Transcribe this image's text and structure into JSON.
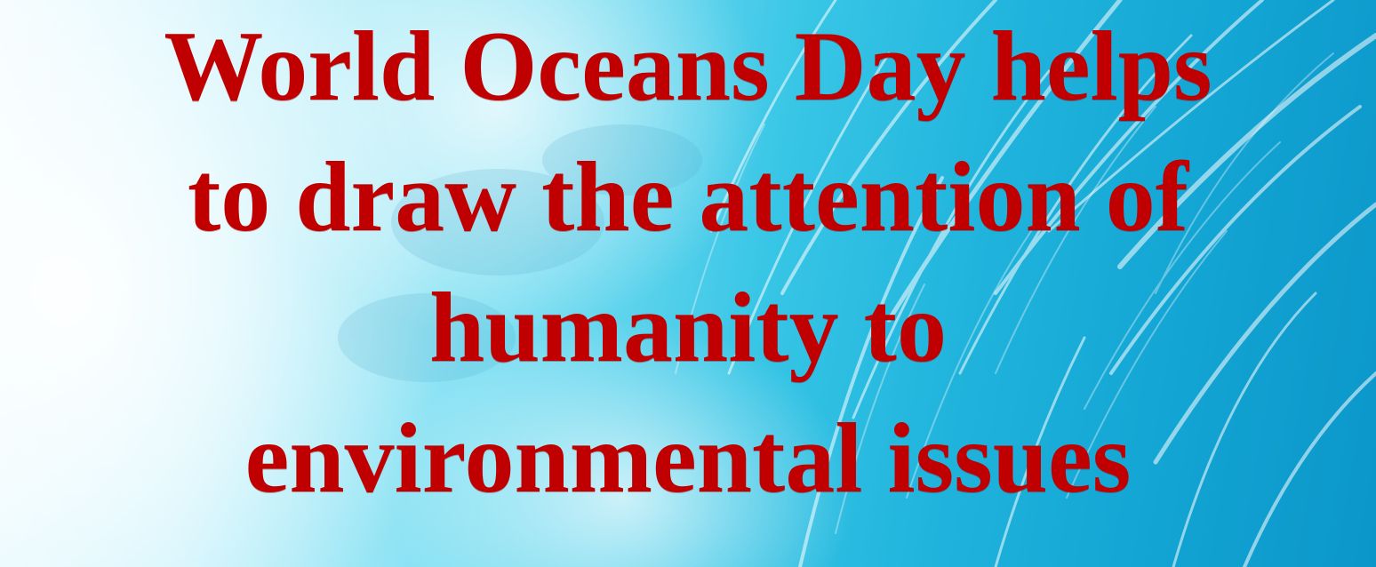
{
  "headline": {
    "lines": [
      "World Oceans Day helps",
      "to draw the attention of",
      "humanity to",
      "environmental issues"
    ]
  },
  "colors": {
    "text": "#c00000",
    "ocean_light": "#c8f2fb",
    "ocean_mid": "#38c6e6",
    "ocean_deep": "#0b96c9"
  },
  "background": {
    "icon": "ocean-wave-photo"
  }
}
